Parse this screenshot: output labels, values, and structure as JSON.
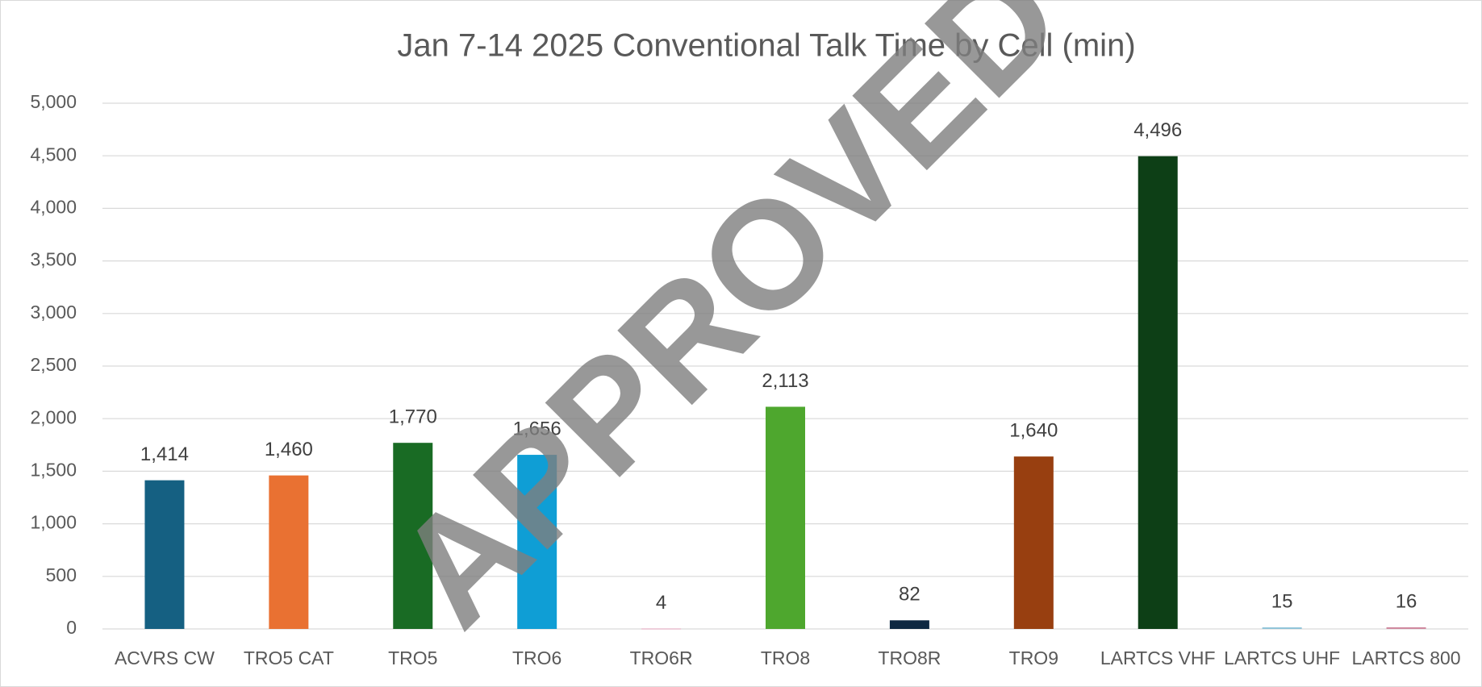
{
  "chart_data": {
    "type": "bar",
    "title": "Jan 7-14 2025 Conventional Talk Time by Cell (min)",
    "watermark": "APPROVED",
    "categories": [
      "ACVRS CW",
      "TRO5 CAT",
      "TRO5",
      "TRO6",
      "TRO6R",
      "TRO8",
      "TRO8R",
      "TRO9",
      "LARTCS VHF",
      "LARTCS UHF",
      "LARTCS 800"
    ],
    "values": [
      1414,
      1460,
      1770,
      1656,
      4,
      2113,
      82,
      1640,
      4496,
      15,
      16
    ],
    "value_labels": [
      "1,414",
      "1,460",
      "1,770",
      "1,656",
      "4",
      "2,113",
      "82",
      "1,640",
      "4,496",
      "15",
      "16"
    ],
    "colors": [
      "#156082",
      "#e97132",
      "#196b24",
      "#0f9ed5",
      "#e8a8c0",
      "#4ea72e",
      "#0e2841",
      "#983f10",
      "#0d3f16",
      "#8fc3d8",
      "#d08aa0"
    ],
    "ylim": [
      0,
      5000
    ],
    "yticks": [
      0,
      500,
      {
        "value": 1000,
        "label": "1,000"
      },
      {
        "value": 1500,
        "label": "1,500"
      },
      {
        "value": 2000,
        "label": "2,000"
      },
      {
        "value": 2500,
        "label": "2,500"
      },
      {
        "value": 3000,
        "label": "3,000"
      },
      {
        "value": 3500,
        "label": "3,500"
      },
      {
        "value": 4000,
        "label": "4,000"
      },
      {
        "value": 4500,
        "label": "4,500"
      },
      {
        "value": 5000,
        "label": "5,000"
      }
    ],
    "grid": true
  }
}
